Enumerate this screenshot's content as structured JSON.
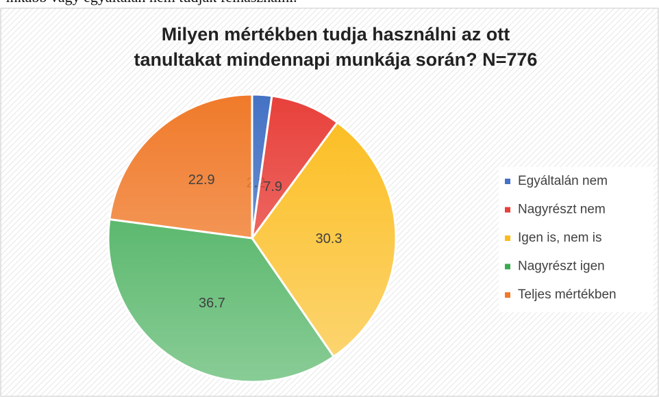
{
  "top_text": "y inkább vagy egyáltalán nem tudják felhasználni.",
  "chart_data": {
    "type": "pie",
    "title": [
      "Milyen mértékben tudja használni az ott",
      "tanultakat mindennapi munkája során? N=776"
    ],
    "categories": [
      "Egyáltalán nem",
      "Nagyrészt nem",
      "Igen is, nem is",
      "Nagyrészt igen",
      "Teljes mértékben"
    ],
    "values": [
      2.2,
      7.9,
      30.3,
      36.7,
      22.9
    ],
    "colors": [
      "#4472c4",
      "#e8403a",
      "#fbbc1c",
      "#3aaa50",
      "#f07a2a"
    ],
    "legend": "right"
  }
}
